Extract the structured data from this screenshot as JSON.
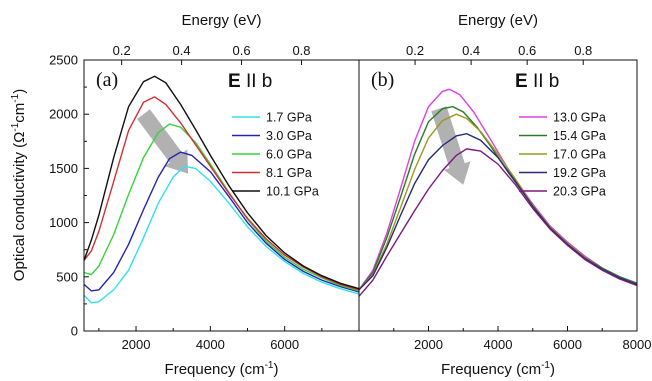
{
  "figure": {
    "y_axis_label": "Optical conductivity",
    "y_axis_unit_a": "(Ω",
    "y_axis_unit_sup1": "-1",
    "y_axis_unit_b": "cm",
    "y_axis_unit_sup2": "-1",
    "y_axis_unit_c": ")"
  },
  "chart_data": [
    {
      "type": "line",
      "panel_label": "(a)",
      "polarization_bold": "E",
      "polarization_rest": " II b",
      "xlabel": "Frequency (cm",
      "xlabel_sup": "-1",
      "xlabel_end": ")",
      "top_xlabel": "Energy (eV)",
      "xlim": [
        600,
        8000
      ],
      "ylim": [
        0,
        2500
      ],
      "x_ticks": [
        2000,
        4000,
        6000
      ],
      "x_tick_labels": [
        "2000",
        "4000",
        "6000"
      ],
      "y_ticks": [
        0,
        500,
        1000,
        1500,
        2000,
        2500
      ],
      "y_tick_labels": [
        "0",
        "500",
        "1000",
        "1500",
        "2000",
        "2500"
      ],
      "top_ticks": [
        0.2,
        0.4,
        0.6,
        0.8
      ],
      "top_tick_labels": [
        "0.2",
        "0.4",
        "0.6",
        "0.8"
      ],
      "legend_position": "right",
      "trend_arrow": [
        [
          2200,
          2000
        ],
        [
          3400,
          1450
        ]
      ],
      "series": [
        {
          "name": "1.7 GPa",
          "color": "#33e0ec",
          "points": [
            [
              600,
              330
            ],
            [
              800,
              260
            ],
            [
              1000,
              270
            ],
            [
              1400,
              380
            ],
            [
              1800,
              560
            ],
            [
              2200,
              860
            ],
            [
              2600,
              1180
            ],
            [
              3000,
              1420
            ],
            [
              3300,
              1520
            ],
            [
              3600,
              1500
            ],
            [
              4000,
              1380
            ],
            [
              4500,
              1180
            ],
            [
              5000,
              960
            ],
            [
              5500,
              780
            ],
            [
              6000,
              640
            ],
            [
              6500,
              530
            ],
            [
              7000,
              450
            ],
            [
              7500,
              390
            ],
            [
              8000,
              340
            ]
          ]
        },
        {
          "name": "3.0 GPa",
          "color": "#2424b4",
          "points": [
            [
              600,
              430
            ],
            [
              800,
              370
            ],
            [
              1000,
              380
            ],
            [
              1400,
              540
            ],
            [
              1800,
              800
            ],
            [
              2200,
              1120
            ],
            [
              2600,
              1420
            ],
            [
              2900,
              1590
            ],
            [
              3200,
              1650
            ],
            [
              3500,
              1620
            ],
            [
              4000,
              1470
            ],
            [
              4500,
              1240
            ],
            [
              5000,
              1000
            ],
            [
              5500,
              810
            ],
            [
              6000,
              660
            ],
            [
              6500,
              550
            ],
            [
              7000,
              470
            ],
            [
              7500,
              410
            ],
            [
              8000,
              360
            ]
          ]
        },
        {
          "name": "6.0 GPa",
          "color": "#36d43a",
          "points": [
            [
              600,
              540
            ],
            [
              800,
              520
            ],
            [
              1000,
              600
            ],
            [
              1400,
              890
            ],
            [
              1800,
              1260
            ],
            [
              2200,
              1600
            ],
            [
              2600,
              1830
            ],
            [
              2900,
              1910
            ],
            [
              3200,
              1880
            ],
            [
              3600,
              1740
            ],
            [
              4000,
              1540
            ],
            [
              4500,
              1280
            ],
            [
              5000,
              1030
            ],
            [
              5500,
              830
            ],
            [
              6000,
              680
            ],
            [
              6500,
              570
            ],
            [
              7000,
              490
            ],
            [
              7500,
              420
            ],
            [
              8000,
              370
            ]
          ]
        },
        {
          "name": "8.1 GPa",
          "color": "#d43030",
          "points": [
            [
              600,
              650
            ],
            [
              800,
              740
            ],
            [
              1000,
              920
            ],
            [
              1400,
              1380
            ],
            [
              1800,
              1850
            ],
            [
              2200,
              2110
            ],
            [
              2500,
              2160
            ],
            [
              2800,
              2090
            ],
            [
              3200,
              1920
            ],
            [
              3600,
              1720
            ],
            [
              4000,
              1520
            ],
            [
              4500,
              1270
            ],
            [
              5000,
              1040
            ],
            [
              5500,
              850
            ],
            [
              6000,
              700
            ],
            [
              6500,
              590
            ],
            [
              7000,
              500
            ],
            [
              7500,
              430
            ],
            [
              8000,
              380
            ]
          ]
        },
        {
          "name": "10.1 GPa",
          "color": "#111111",
          "points": [
            [
              600,
              650
            ],
            [
              800,
              840
            ],
            [
              1000,
              1070
            ],
            [
              1400,
              1600
            ],
            [
              1800,
              2070
            ],
            [
              2200,
              2300
            ],
            [
              2500,
              2350
            ],
            [
              2800,
              2290
            ],
            [
              3200,
              2090
            ],
            [
              3600,
              1860
            ],
            [
              4000,
              1620
            ],
            [
              4500,
              1340
            ],
            [
              5000,
              1090
            ],
            [
              5500,
              880
            ],
            [
              6000,
              720
            ],
            [
              6500,
              600
            ],
            [
              7000,
              510
            ],
            [
              7500,
              440
            ],
            [
              8000,
              390
            ]
          ]
        }
      ]
    },
    {
      "type": "line",
      "panel_label": "(b)",
      "polarization_bold": "E",
      "polarization_rest": " II b",
      "xlabel": "Frequency (cm",
      "xlabel_sup": "-1",
      "xlabel_end": ")",
      "top_xlabel": "Energy (eV)",
      "xlim": [
        0,
        8000
      ],
      "ylim": [
        0,
        2500
      ],
      "x_ticks": [
        2000,
        4000,
        6000,
        8000
      ],
      "x_tick_labels": [
        "2000",
        "4000",
        "6000",
        "8000"
      ],
      "top_ticks": [
        0.2,
        0.4,
        0.6,
        0.8
      ],
      "top_tick_labels": [
        "0.2",
        "0.4",
        "0.6",
        "0.8"
      ],
      "legend_position": "right",
      "trend_arrow": [
        [
          2300,
          2050
        ],
        [
          3000,
          1350
        ]
      ],
      "series": [
        {
          "name": "13.0 GPa",
          "color": "#e040e0",
          "points": [
            [
              0,
              380
            ],
            [
              400,
              560
            ],
            [
              800,
              900
            ],
            [
              1200,
              1320
            ],
            [
              1600,
              1750
            ],
            [
              2000,
              2070
            ],
            [
              2400,
              2210
            ],
            [
              2600,
              2230
            ],
            [
              2900,
              2180
            ],
            [
              3300,
              2020
            ],
            [
              3800,
              1760
            ],
            [
              4300,
              1490
            ],
            [
              5000,
              1170
            ],
            [
              5500,
              970
            ],
            [
              6000,
              820
            ],
            [
              6500,
              690
            ],
            [
              7000,
              580
            ],
            [
              7500,
              500
            ],
            [
              8000,
              440
            ]
          ]
        },
        {
          "name": "15.4 GPa",
          "color": "#2c7a2c",
          "points": [
            [
              0,
              380
            ],
            [
              400,
              540
            ],
            [
              800,
              860
            ],
            [
              1200,
              1240
            ],
            [
              1600,
              1630
            ],
            [
              2000,
              1930
            ],
            [
              2400,
              2050
            ],
            [
              2700,
              2070
            ],
            [
              3000,
              2020
            ],
            [
              3400,
              1880
            ],
            [
              3800,
              1700
            ],
            [
              4300,
              1460
            ],
            [
              5000,
              1160
            ],
            [
              5500,
              960
            ],
            [
              6000,
              810
            ],
            [
              6500,
              680
            ],
            [
              7000,
              580
            ],
            [
              7500,
              500
            ],
            [
              8000,
              440
            ]
          ]
        },
        {
          "name": "17.0 GPa",
          "color": "#9a9a20",
          "points": [
            [
              0,
              380
            ],
            [
              400,
              520
            ],
            [
              800,
              800
            ],
            [
              1200,
              1140
            ],
            [
              1600,
              1490
            ],
            [
              2000,
              1780
            ],
            [
              2400,
              1940
            ],
            [
              2800,
              2000
            ],
            [
              3100,
              1960
            ],
            [
              3500,
              1840
            ],
            [
              4000,
              1630
            ],
            [
              4500,
              1400
            ],
            [
              5000,
              1160
            ],
            [
              5500,
              960
            ],
            [
              6000,
              810
            ],
            [
              6500,
              680
            ],
            [
              7000,
              570
            ],
            [
              7500,
              490
            ],
            [
              8000,
              430
            ]
          ]
        },
        {
          "name": "19.2 GPa",
          "color": "#2a2a78",
          "points": [
            [
              0,
              380
            ],
            [
              400,
              510
            ],
            [
              800,
              770
            ],
            [
              1200,
              1070
            ],
            [
              1600,
              1360
            ],
            [
              2000,
              1580
            ],
            [
              2400,
              1710
            ],
            [
              2800,
              1800
            ],
            [
              3100,
              1820
            ],
            [
              3500,
              1760
            ],
            [
              4000,
              1600
            ],
            [
              4500,
              1380
            ],
            [
              5000,
              1150
            ],
            [
              5500,
              950
            ],
            [
              6000,
              800
            ],
            [
              6500,
              670
            ],
            [
              7000,
              570
            ],
            [
              7500,
              490
            ],
            [
              8000,
              430
            ]
          ]
        },
        {
          "name": "20.3 GPa",
          "color": "#7a1a80",
          "points": [
            [
              0,
              320
            ],
            [
              400,
              470
            ],
            [
              800,
              690
            ],
            [
              1200,
              900
            ],
            [
              1600,
              1110
            ],
            [
              2000,
              1310
            ],
            [
              2400,
              1480
            ],
            [
              2800,
              1620
            ],
            [
              3100,
              1680
            ],
            [
              3500,
              1660
            ],
            [
              4000,
              1540
            ],
            [
              4500,
              1350
            ],
            [
              5000,
              1130
            ],
            [
              5500,
              940
            ],
            [
              6000,
              790
            ],
            [
              6500,
              660
            ],
            [
              7000,
              560
            ],
            [
              7500,
              480
            ],
            [
              8000,
              420
            ]
          ]
        }
      ]
    }
  ]
}
